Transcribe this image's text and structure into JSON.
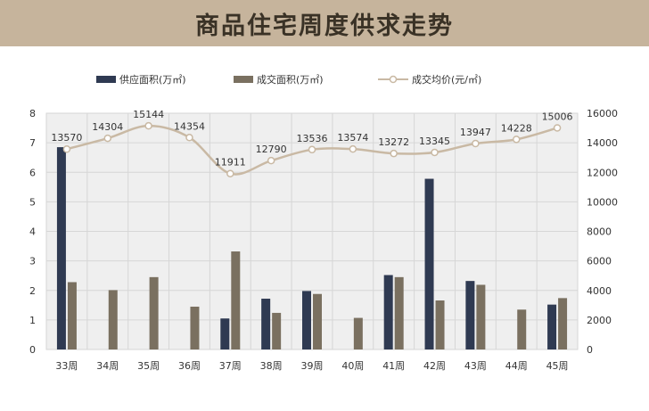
{
  "banner": {
    "title": "商品住宅周度供求走势"
  },
  "colors": {
    "banner_bg": "#c6b49c",
    "supply": "#2f3a52",
    "deal": "#7a7060",
    "price": "#c9b9a4",
    "grid": "#d6d6d6",
    "plot_bg": "#efefef"
  },
  "chart_data": {
    "type": "bar",
    "categories": [
      "33周",
      "34周",
      "35周",
      "36周",
      "37周",
      "38周",
      "39周",
      "40周",
      "41周",
      "42周",
      "43周",
      "44周",
      "45周"
    ],
    "series": [
      {
        "name": "供应面积(万㎡)",
        "kind": "bar",
        "axis": "left",
        "values": [
          6.85,
          0,
          0,
          0,
          1.05,
          1.72,
          1.98,
          0,
          2.52,
          5.78,
          2.32,
          0,
          1.52
        ]
      },
      {
        "name": "成交面积(万㎡)",
        "kind": "bar",
        "axis": "left",
        "values": [
          2.28,
          2.01,
          2.45,
          1.45,
          3.32,
          1.24,
          1.88,
          1.07,
          2.45,
          1.66,
          2.19,
          1.35,
          1.74
        ]
      },
      {
        "name": "成交均价(元/㎡)",
        "kind": "line",
        "axis": "right",
        "values": [
          13570,
          14304,
          15144,
          14354,
          11911,
          12790,
          13536,
          13574,
          13272,
          13345,
          13947,
          14228,
          15006
        ]
      }
    ],
    "y_left": {
      "min": 0,
      "max": 8,
      "ticks": [
        "0",
        "1",
        "2",
        "3",
        "4",
        "5",
        "6",
        "7",
        "8"
      ]
    },
    "y_right": {
      "min": 0,
      "max": 16000,
      "ticks": [
        "0",
        "2000",
        "4000",
        "6000",
        "8000",
        "10000",
        "12000",
        "14000",
        "16000"
      ]
    },
    "price_labels": [
      "13570",
      "14304",
      "15144",
      "14354",
      "11911",
      "12790",
      "13536",
      "13574",
      "13272",
      "13345",
      "13947",
      "14228",
      "15006"
    ],
    "legend_position": "top",
    "grid": true
  }
}
